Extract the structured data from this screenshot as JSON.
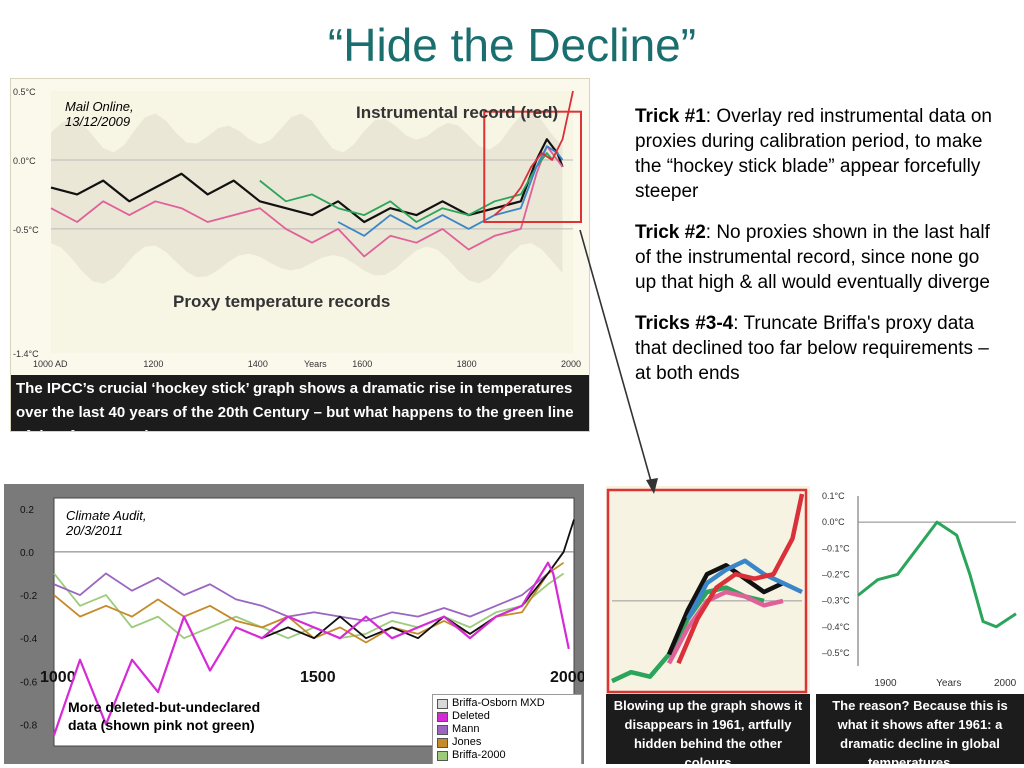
{
  "title": "“Hide the Decline”",
  "tricks": [
    {
      "label": "Trick #1",
      "text": ":  Overlay red instrumental data on proxies during calibration period, to make the “hockey stick blade” appear forcefully steeper"
    },
    {
      "label": "Trick #2",
      "text": ": No proxies shown in the last half of the instrumental record, since none go up that high & all would eventually diverge"
    },
    {
      "label": "Tricks #3-4",
      "text": ":  Truncate Briffa's proxy data that declined too far below requirements – at both ends"
    }
  ],
  "colors": {
    "title": "#1a6e6e",
    "red": "#d9303a",
    "green": "#2aa55a",
    "pink": "#e0609a",
    "blue": "#3a86c8",
    "black": "#111111",
    "magenta": "#d62ad6",
    "purple": "#9a66c0",
    "orange": "#c58a2a",
    "lightgreen": "#9ccc7a",
    "band": "#e8e6d4"
  },
  "chart_data": [
    {
      "type": "line",
      "source": "Mail Online, 13/12/2009",
      "title": "Instrumental record (red)",
      "annotation": "Proxy temperature records",
      "caption": "The IPCC’s crucial ‘hockey stick’ graph shows a dramatic rise in temperatures over the last 40 years of the 20th Century – but what happens to the green line of data from tree rings?",
      "xlabel": "Years",
      "x_ticks": [
        "1000 AD",
        "1200",
        "1400",
        "1600",
        "1800",
        "2000"
      ],
      "y_ticks": [
        "0.5°C",
        "0.0°C",
        "-0.5°C",
        "-1.4°C"
      ],
      "xlim": [
        1000,
        2000
      ],
      "ylim": [
        -1.4,
        0.5
      ],
      "series": [
        {
          "color": "black",
          "x": [
            1000,
            1050,
            1100,
            1150,
            1200,
            1250,
            1300,
            1350,
            1400,
            1450,
            1500,
            1550,
            1600,
            1650,
            1700,
            1750,
            1800,
            1850,
            1900,
            1930,
            1950,
            1970,
            1980
          ],
          "y": [
            -0.2,
            -0.25,
            -0.15,
            -0.3,
            -0.2,
            -0.1,
            -0.25,
            -0.15,
            -0.3,
            -0.35,
            -0.4,
            -0.3,
            -0.45,
            -0.35,
            -0.4,
            -0.3,
            -0.4,
            -0.35,
            -0.3,
            0.0,
            0.15,
            0.05,
            -0.05
          ]
        },
        {
          "color": "pink",
          "x": [
            1000,
            1050,
            1100,
            1150,
            1200,
            1250,
            1300,
            1350,
            1400,
            1450,
            1500,
            1550,
            1600,
            1650,
            1700,
            1750,
            1800,
            1850,
            1900,
            1930,
            1950,
            1970,
            1980
          ],
          "y": [
            -0.35,
            -0.45,
            -0.3,
            -0.4,
            -0.3,
            -0.35,
            -0.45,
            -0.4,
            -0.35,
            -0.5,
            -0.6,
            -0.5,
            -0.7,
            -0.55,
            -0.6,
            -0.5,
            -0.65,
            -0.55,
            -0.5,
            -0.1,
            0.1,
            0.0,
            -0.05
          ]
        },
        {
          "color": "green",
          "x": [
            1400,
            1450,
            1500,
            1550,
            1600,
            1650,
            1700,
            1750,
            1800,
            1850,
            1900,
            1930,
            1950,
            1961
          ],
          "y": [
            -0.15,
            -0.3,
            -0.25,
            -0.35,
            -0.4,
            -0.3,
            -0.45,
            -0.35,
            -0.4,
            -0.3,
            -0.25,
            -0.05,
            0.05,
            0.0
          ]
        },
        {
          "color": "blue",
          "x": [
            1550,
            1600,
            1650,
            1700,
            1750,
            1800,
            1850,
            1900,
            1930,
            1950,
            1970,
            1980
          ],
          "y": [
            -0.45,
            -0.55,
            -0.4,
            -0.5,
            -0.4,
            -0.5,
            -0.4,
            -0.35,
            -0.05,
            0.1,
            0.05,
            0.0
          ]
        },
        {
          "color": "red",
          "x": [
            1850,
            1880,
            1900,
            1920,
            1940,
            1960,
            1980,
            2000
          ],
          "y": [
            -0.4,
            -0.3,
            -0.2,
            -0.05,
            0.05,
            0.0,
            0.15,
            0.5
          ]
        }
      ]
    },
    {
      "type": "line",
      "source": "Climate Audit, 20/3/2011",
      "annotation": "More deleted-but-undeclared data (shown pink not green)",
      "x_ticks": [
        "1000",
        "1500",
        "2000"
      ],
      "y_ticks": [
        "0.2",
        "0.0",
        "-0.2",
        "-0.4",
        "-0.6",
        "-0.8"
      ],
      "xlim": [
        1000,
        2000
      ],
      "ylim": [
        -0.9,
        0.25
      ],
      "legend": [
        "Briffa-Osborn MXD",
        "Deleted",
        "Mann",
        "Jones",
        "Briffa-2000"
      ],
      "series": [
        {
          "name": "Briffa-Osborn MXD",
          "color": "black",
          "x": [
            1400,
            1450,
            1500,
            1550,
            1600,
            1650,
            1700,
            1750,
            1800,
            1850,
            1900,
            1950,
            1980,
            2000
          ],
          "y": [
            -0.4,
            -0.35,
            -0.4,
            -0.3,
            -0.4,
            -0.35,
            -0.4,
            -0.3,
            -0.38,
            -0.3,
            -0.25,
            -0.1,
            0.0,
            0.15
          ]
        },
        {
          "name": "Deleted",
          "color": "magenta",
          "x": [
            1000,
            1050,
            1100,
            1150,
            1200,
            1250,
            1300,
            1350,
            1400,
            1450,
            1500,
            1550,
            1600,
            1650,
            1700,
            1750,
            1800,
            1850,
            1900,
            1950,
            1960,
            1990
          ],
          "y": [
            -0.85,
            -0.5,
            -0.8,
            -0.5,
            -0.65,
            -0.3,
            -0.55,
            -0.35,
            -0.4,
            -0.3,
            -0.35,
            -0.4,
            -0.3,
            -0.4,
            -0.35,
            -0.3,
            -0.4,
            -0.3,
            -0.25,
            -0.05,
            -0.1,
            -0.45
          ]
        },
        {
          "name": "Mann",
          "color": "purple",
          "x": [
            1000,
            1050,
            1100,
            1150,
            1200,
            1250,
            1300,
            1350,
            1400,
            1450,
            1500,
            1550,
            1600,
            1650,
            1700,
            1750,
            1800,
            1850,
            1900,
            1950,
            1980
          ],
          "y": [
            -0.15,
            -0.2,
            -0.1,
            -0.18,
            -0.12,
            -0.2,
            -0.15,
            -0.22,
            -0.25,
            -0.3,
            -0.28,
            -0.3,
            -0.32,
            -0.28,
            -0.3,
            -0.26,
            -0.3,
            -0.25,
            -0.2,
            -0.1,
            0.0
          ]
        },
        {
          "name": "Jones",
          "color": "orange",
          "x": [
            1000,
            1050,
            1100,
            1150,
            1200,
            1250,
            1300,
            1350,
            1400,
            1450,
            1500,
            1550,
            1600,
            1650,
            1700,
            1750,
            1800,
            1850,
            1900,
            1950,
            1980
          ],
          "y": [
            -0.2,
            -0.3,
            -0.25,
            -0.3,
            -0.22,
            -0.3,
            -0.25,
            -0.32,
            -0.35,
            -0.3,
            -0.4,
            -0.35,
            -0.42,
            -0.35,
            -0.38,
            -0.32,
            -0.38,
            -0.3,
            -0.28,
            -0.1,
            -0.05
          ]
        },
        {
          "name": "Briffa-2000",
          "color": "lightgreen",
          "x": [
            1000,
            1050,
            1100,
            1150,
            1200,
            1250,
            1300,
            1350,
            1400,
            1450,
            1500,
            1550,
            1600,
            1650,
            1700,
            1750,
            1800,
            1850,
            1900,
            1950,
            1980
          ],
          "y": [
            -0.1,
            -0.25,
            -0.2,
            -0.35,
            -0.3,
            -0.4,
            -0.35,
            -0.3,
            -0.35,
            -0.4,
            -0.35,
            -0.4,
            -0.38,
            -0.32,
            -0.35,
            -0.3,
            -0.35,
            -0.28,
            -0.25,
            -0.15,
            -0.1
          ]
        }
      ]
    },
    {
      "type": "line",
      "caption": "Blowing up the graph shows it disappears in 1961, artfully hidden behind the other colours",
      "series": [
        {
          "color": "green",
          "x": [
            0,
            1,
            2,
            3,
            4,
            5,
            6,
            7,
            8
          ],
          "y": [
            -0.9,
            -0.8,
            -0.85,
            -0.6,
            -0.2,
            0.1,
            0.15,
            0.05,
            0.0
          ]
        },
        {
          "color": "black",
          "x": [
            3,
            4,
            5,
            6,
            7,
            8,
            9
          ],
          "y": [
            -0.6,
            -0.1,
            0.3,
            0.4,
            0.25,
            0.1,
            0.2
          ]
        },
        {
          "color": "blue",
          "x": [
            4,
            5,
            6,
            7,
            8,
            9,
            10
          ],
          "y": [
            -0.2,
            0.2,
            0.35,
            0.45,
            0.3,
            0.2,
            0.1
          ]
        },
        {
          "color": "pink",
          "x": [
            3,
            4,
            5,
            6,
            7,
            8,
            9
          ],
          "y": [
            -0.7,
            -0.3,
            0.0,
            0.1,
            0.05,
            -0.05,
            0.0
          ]
        },
        {
          "color": "red",
          "x": [
            3.5,
            4.5,
            5.5,
            6.5,
            7.5,
            8.5,
            9.5,
            10
          ],
          "y": [
            -0.7,
            -0.2,
            0.15,
            0.3,
            0.25,
            0.3,
            0.7,
            1.2
          ]
        }
      ]
    },
    {
      "type": "line",
      "caption": "The reason? Because this is what it shows after 1961: a dramatic decline in global temperatures . . .",
      "xlabel": "Years",
      "x_ticks": [
        "1900",
        "2000"
      ],
      "y_ticks": [
        "0.1°C",
        "0.0°C",
        "–0.1°C",
        "–0.2°C",
        "–0.3°C",
        "–0.4°C",
        "–0.5°C"
      ],
      "xlim": [
        1880,
        2000
      ],
      "ylim": [
        -0.55,
        0.1
      ],
      "series": [
        {
          "color": "green",
          "x": [
            1880,
            1895,
            1910,
            1925,
            1940,
            1955,
            1965,
            1975,
            1985,
            2000
          ],
          "y": [
            -0.28,
            -0.22,
            -0.2,
            -0.1,
            0.0,
            -0.05,
            -0.2,
            -0.38,
            -0.4,
            -0.35
          ]
        }
      ]
    }
  ]
}
